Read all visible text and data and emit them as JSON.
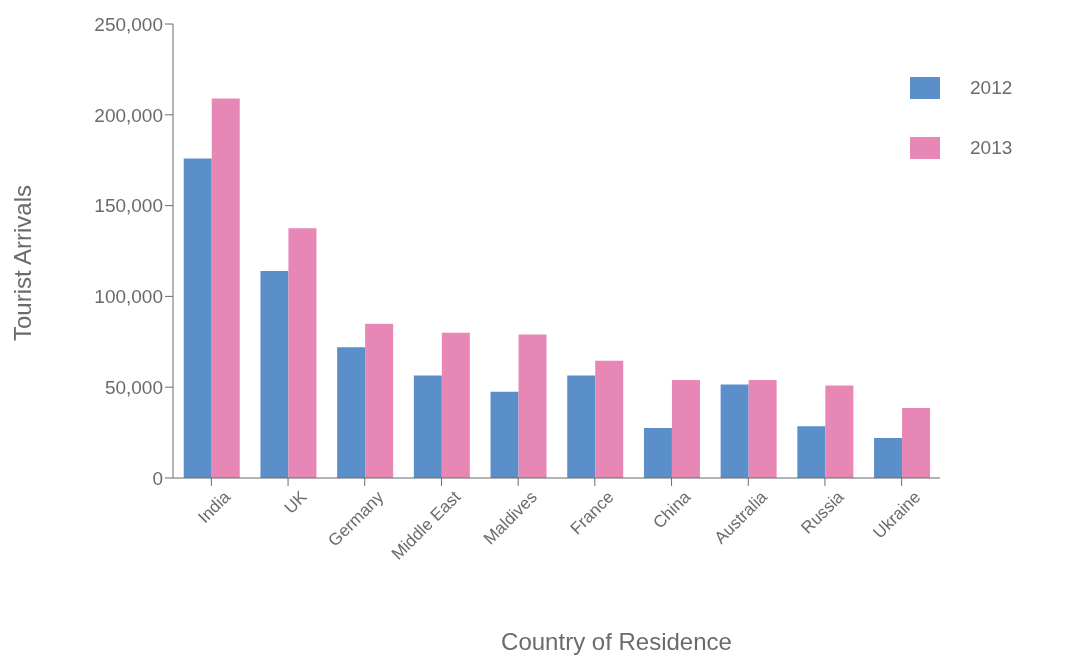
{
  "chart_data": {
    "type": "bar",
    "xlabel": "Country of Residence",
    "ylabel": "Tourist Arrivals",
    "categories": [
      "India",
      "UK",
      "Germany",
      "Middle East",
      "Maldives",
      "France",
      "China",
      "Australia",
      "Russia",
      "Ukraine"
    ],
    "series": [
      {
        "name": "2012",
        "color": "#5b8fc9",
        "values": [
          176000,
          114000,
          72000,
          56500,
          47500,
          56500,
          27500,
          51500,
          28500,
          22000
        ]
      },
      {
        "name": "2013",
        "color": "#e687b6",
        "values": [
          209000,
          137500,
          85000,
          80000,
          79000,
          64500,
          54000,
          54000,
          51000,
          38500
        ]
      }
    ],
    "ylim": [
      0,
      250000
    ],
    "yticks": [
      0,
      {
        "value": 50000,
        "label": "50,000"
      },
      {
        "value": 100000,
        "label": "100,000"
      },
      {
        "value": 150000,
        "label": "150,000"
      },
      {
        "value": 200000,
        "label": "200,000"
      },
      {
        "value": 250000,
        "label": "250,000"
      }
    ],
    "grid": false,
    "legend": "top right"
  }
}
